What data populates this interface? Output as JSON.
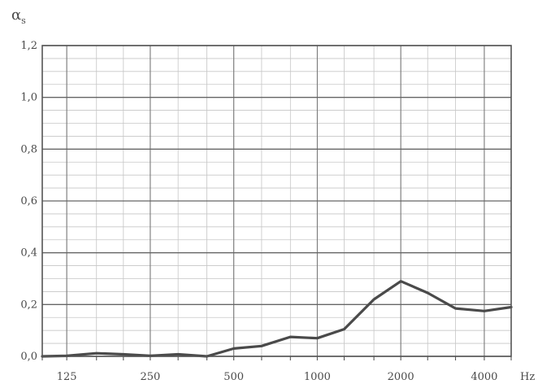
{
  "chart_data": {
    "type": "line",
    "title": "",
    "xlabel": "Hz",
    "ylabel": {
      "symbol": "α",
      "subscript": "s"
    },
    "x_scale": "log2",
    "xlim": [
      102,
      5000
    ],
    "ylim": [
      0,
      1.2
    ],
    "grid": true,
    "x_ticks": [
      {
        "value": 125,
        "label": "125"
      },
      {
        "value": 250,
        "label": "250"
      },
      {
        "value": 500,
        "label": "500"
      },
      {
        "value": 1000,
        "label": "1000"
      },
      {
        "value": 2000,
        "label": "2000"
      },
      {
        "value": 4000,
        "label": "4000"
      }
    ],
    "y_ticks": [
      {
        "value": 0.0,
        "label": "0,0"
      },
      {
        "value": 0.2,
        "label": "0,2"
      },
      {
        "value": 0.4,
        "label": "0,4"
      },
      {
        "value": 0.6,
        "label": "0,6"
      },
      {
        "value": 0.8,
        "label": "0,8"
      },
      {
        "value": 1.0,
        "label": "1,0"
      },
      {
        "value": 1.2,
        "label": "1,2"
      }
    ],
    "series": [
      {
        "color": "#4a4a4a",
        "x": [
          102,
          125,
          160,
          200,
          250,
          315,
          400,
          500,
          630,
          800,
          1000,
          1250,
          1600,
          2000,
          2500,
          3150,
          4000,
          5000
        ],
        "y": [
          0.0,
          0.002,
          0.012,
          0.008,
          0.002,
          0.008,
          0.0,
          0.03,
          0.04,
          0.075,
          0.07,
          0.105,
          0.22,
          0.29,
          0.245,
          0.185,
          0.175,
          0.19
        ]
      }
    ]
  }
}
